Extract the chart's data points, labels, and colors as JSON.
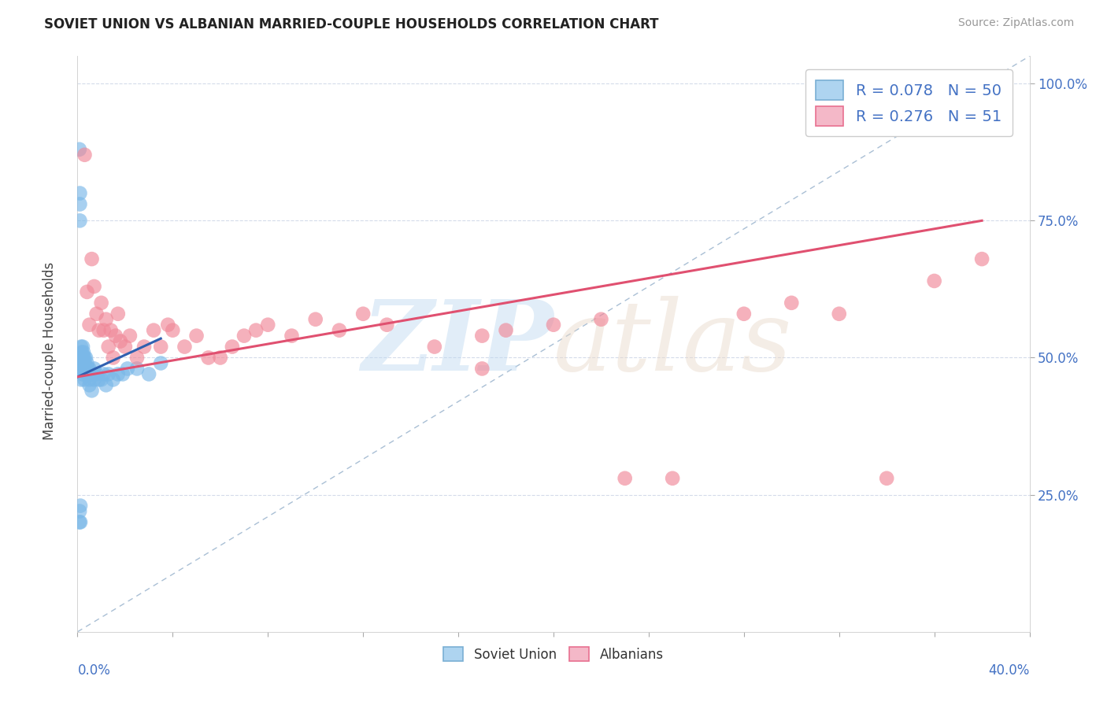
{
  "title": "SOVIET UNION VS ALBANIAN MARRIED-COUPLE HOUSEHOLDS CORRELATION CHART",
  "source": "Source: ZipAtlas.com",
  "ylabel": "Married-couple Households",
  "ytick_labels": [
    "25.0%",
    "50.0%",
    "75.0%",
    "100.0%"
  ],
  "ytick_values": [
    0.25,
    0.5,
    0.75,
    1.0
  ],
  "legend1_items": [
    {
      "label_r": "R = 0.078",
      "label_n": "N = 50",
      "facecolor": "#aed4f0",
      "edgecolor": "#7aafd4"
    },
    {
      "label_r": "R = 0.276",
      "label_n": "N = 51",
      "facecolor": "#f4b8c8",
      "edgecolor": "#e87090"
    }
  ],
  "soviet_color": "#7ab8e8",
  "albanian_color": "#f08898",
  "soviet_line_color": "#3060b0",
  "albanian_line_color": "#e05070",
  "diagonal_color": "#a0b8d0",
  "background_color": "#ffffff",
  "xlim": [
    0.0,
    0.4
  ],
  "ylim": [
    0.0,
    1.05
  ],
  "title_fontsize": 12,
  "tick_color": "#4472c4",
  "grid_color": "#d0d8e8",
  "soviet_scatter_x": [
    0.0008,
    0.0008,
    0.0009,
    0.001,
    0.001,
    0.001,
    0.0012,
    0.0012,
    0.0014,
    0.0015,
    0.0015,
    0.0016,
    0.0017,
    0.0018,
    0.0018,
    0.002,
    0.002,
    0.0022,
    0.0022,
    0.0025,
    0.0025,
    0.003,
    0.003,
    0.003,
    0.003,
    0.0035,
    0.0035,
    0.004,
    0.004,
    0.0045,
    0.005,
    0.005,
    0.005,
    0.006,
    0.006,
    0.007,
    0.007,
    0.008,
    0.009,
    0.01,
    0.011,
    0.012,
    0.013,
    0.015,
    0.017,
    0.019,
    0.021,
    0.025,
    0.03,
    0.035
  ],
  "soviet_scatter_y": [
    0.88,
    0.2,
    0.22,
    0.78,
    0.8,
    0.75,
    0.2,
    0.23,
    0.5,
    0.48,
    0.52,
    0.46,
    0.5,
    0.48,
    0.51,
    0.5,
    0.49,
    0.47,
    0.52,
    0.5,
    0.51,
    0.46,
    0.49,
    0.48,
    0.5,
    0.48,
    0.5,
    0.47,
    0.49,
    0.48,
    0.45,
    0.46,
    0.48,
    0.44,
    0.47,
    0.46,
    0.48,
    0.47,
    0.46,
    0.46,
    0.47,
    0.45,
    0.47,
    0.46,
    0.47,
    0.47,
    0.48,
    0.48,
    0.47,
    0.49
  ],
  "albanian_scatter_x": [
    0.003,
    0.004,
    0.005,
    0.006,
    0.007,
    0.008,
    0.009,
    0.01,
    0.011,
    0.012,
    0.013,
    0.014,
    0.015,
    0.016,
    0.017,
    0.018,
    0.02,
    0.022,
    0.025,
    0.028,
    0.032,
    0.035,
    0.038,
    0.04,
    0.045,
    0.05,
    0.055,
    0.06,
    0.065,
    0.07,
    0.075,
    0.08,
    0.09,
    0.1,
    0.11,
    0.12,
    0.13,
    0.15,
    0.17,
    0.18,
    0.2,
    0.22,
    0.23,
    0.25,
    0.28,
    0.3,
    0.32,
    0.34,
    0.17,
    0.36,
    0.38
  ],
  "albanian_scatter_y": [
    0.87,
    0.62,
    0.56,
    0.68,
    0.63,
    0.58,
    0.55,
    0.6,
    0.55,
    0.57,
    0.52,
    0.55,
    0.5,
    0.54,
    0.58,
    0.53,
    0.52,
    0.54,
    0.5,
    0.52,
    0.55,
    0.52,
    0.56,
    0.55,
    0.52,
    0.54,
    0.5,
    0.5,
    0.52,
    0.54,
    0.55,
    0.56,
    0.54,
    0.57,
    0.55,
    0.58,
    0.56,
    0.52,
    0.54,
    0.55,
    0.56,
    0.57,
    0.28,
    0.28,
    0.58,
    0.6,
    0.58,
    0.28,
    0.48,
    0.64,
    0.68
  ],
  "soviet_line_x": [
    0.0,
    0.035
  ],
  "soviet_line_y": [
    0.465,
    0.535
  ],
  "albanian_line_x": [
    0.0,
    0.38
  ],
  "albanian_line_y": [
    0.465,
    0.75
  ]
}
